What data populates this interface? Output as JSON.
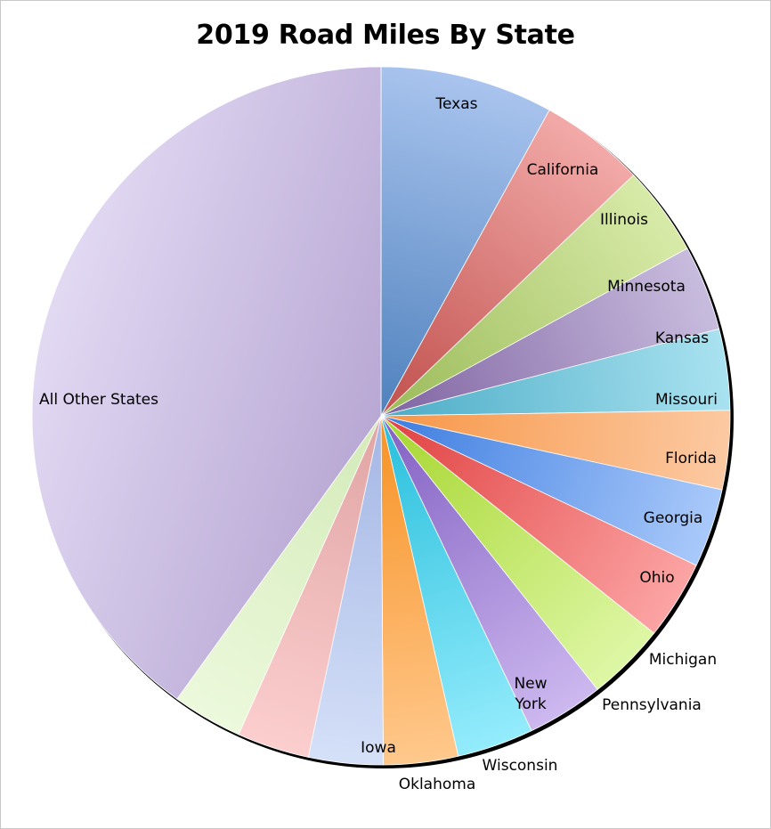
{
  "chart_data": {
    "type": "pie",
    "title": "2019 Road Miles By State",
    "slices": [
      {
        "label": "Texas",
        "value": 7.9,
        "color": "#4f81bd",
        "light": "#a9c4ee"
      },
      {
        "label": "California",
        "value": 4.8,
        "color": "#c0504d",
        "light": "#f2aaa8"
      },
      {
        "label": "Illinois",
        "value": 4.1,
        "color": "#9bbb59",
        "light": "#d8eaa8"
      },
      {
        "label": "Minnesota",
        "value": 3.9,
        "color": "#8064a2",
        "light": "#c8bcde"
      },
      {
        "label": "Kansas",
        "value": 3.7,
        "color": "#4bacc6",
        "light": "#a9e2f0"
      },
      {
        "label": "Missouri",
        "value": 3.6,
        "color": "#f79646",
        "light": "#fcc9a2"
      },
      {
        "label": "Florida",
        "value": 3.6,
        "color": "#3c7ce0",
        "light": "#a9c9fa"
      },
      {
        "label": "Georgia",
        "value": 3.6,
        "color": "#e04040",
        "light": "#fca4a4"
      },
      {
        "label": "Ohio",
        "value": 3.6,
        "color": "#a6d62e",
        "light": "#def7a6"
      },
      {
        "label": "Michigan",
        "value": 3.5,
        "color": "#8260c2",
        "light": "#cdb8ef"
      },
      {
        "label": "Pennsylvania",
        "value": 3.5,
        "color": "#27bedc",
        "light": "#94ecfc"
      },
      {
        "label": "New York",
        "value": 3.4,
        "color": "#f79224",
        "light": "#ffc88c"
      },
      {
        "label": "Wisconsin",
        "value": 3.4,
        "color": "#a3b6e4",
        "light": "#d5e0f8"
      },
      {
        "label": "Oklahoma",
        "value": 3.3,
        "color": "#e0a4a4",
        "light": "#fccece"
      },
      {
        "label": "Iowa",
        "value": 3.2,
        "color": "#d3eab8",
        "light": "#ecf9dc"
      },
      {
        "label": "All Other States",
        "value": 39.5,
        "color": "#b8a8d4",
        "light": "#e2d9f3"
      }
    ],
    "legend": "none",
    "data_labels": "category names on slices"
  }
}
